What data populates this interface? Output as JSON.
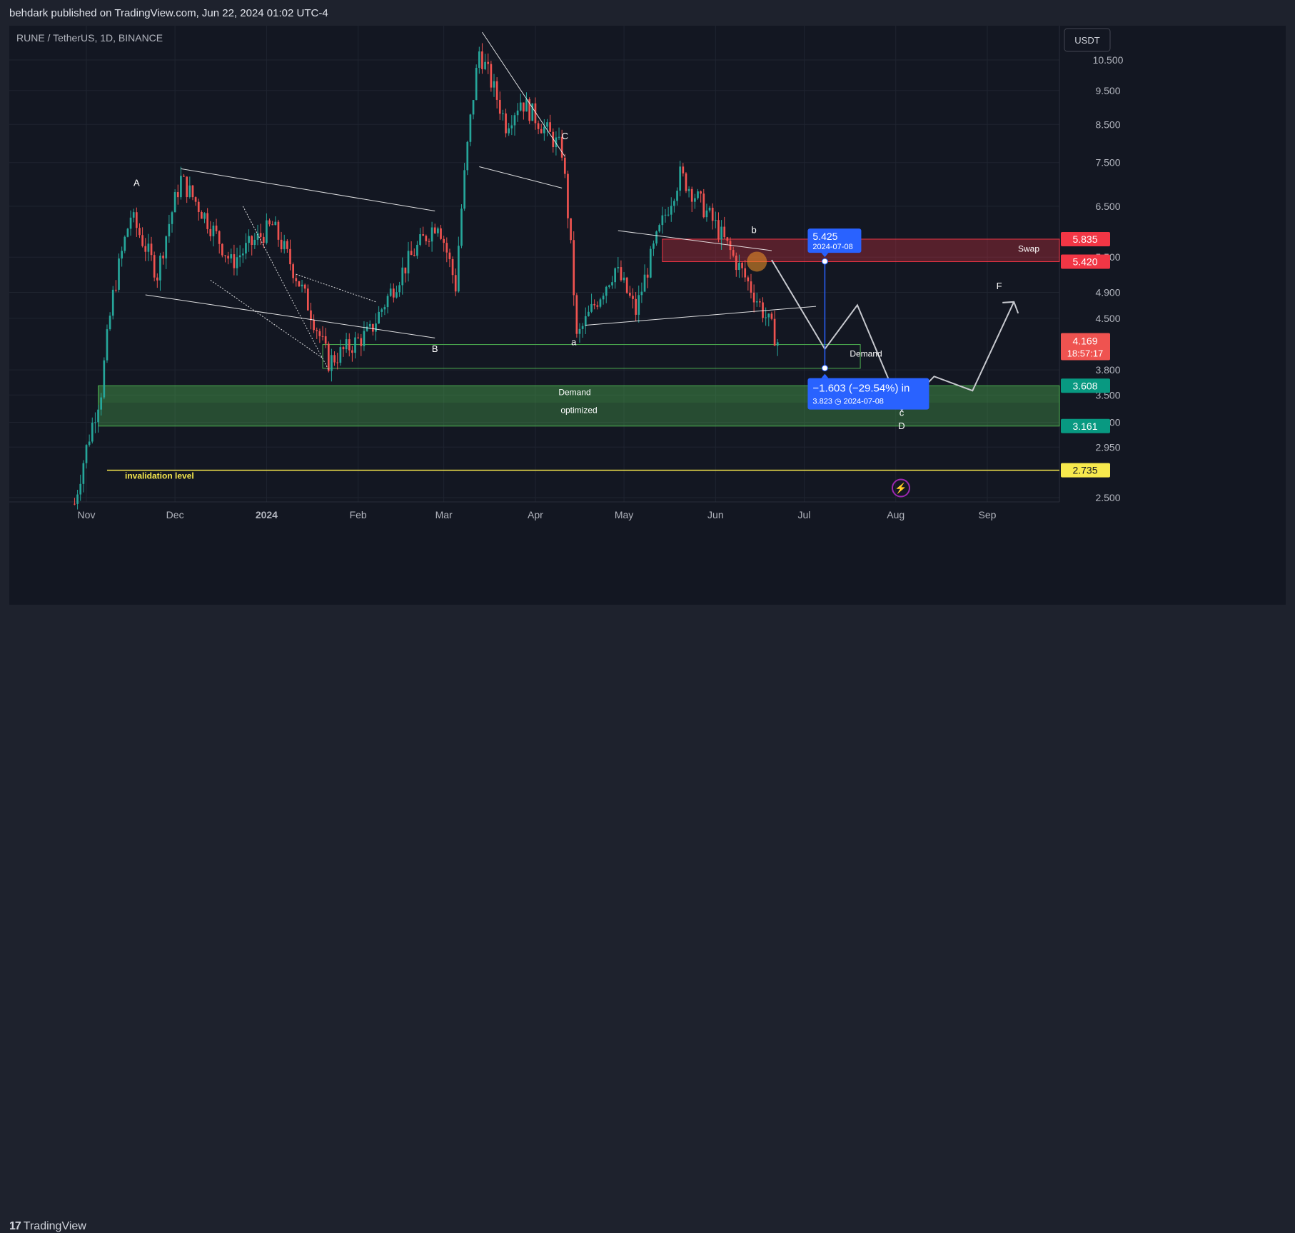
{
  "header": {
    "publisher": "behdark published on TradingView.com, Jun 22, 2024 01:02 UTC-4"
  },
  "footer": {
    "brand": "TradingView"
  },
  "chart_data": {
    "type": "candlestick",
    "symbol": "RUNE / TetherUS, 1D, BINANCE",
    "currency": "USDT",
    "y_scale": "log",
    "y_ticks": [
      "10.500",
      "9.500",
      "8.500",
      "7.500",
      "6.500",
      "5.500",
      "4.900",
      "4.500",
      "3.800",
      "3.500",
      "3.200",
      "2.950",
      "2.500"
    ],
    "x_ticks": [
      {
        "label": "Nov",
        "date": "2023-11-01"
      },
      {
        "label": "Dec",
        "date": "2023-12-01"
      },
      {
        "label": "2024",
        "date": "2024-01-01",
        "bold": true
      },
      {
        "label": "Feb",
        "date": "2024-02-01"
      },
      {
        "label": "Mar",
        "date": "2024-03-01"
      },
      {
        "label": "Apr",
        "date": "2024-04-01"
      },
      {
        "label": "May",
        "date": "2024-05-01"
      },
      {
        "label": "Jun",
        "date": "2024-06-01"
      },
      {
        "label": "Jul",
        "date": "2024-07-01"
      },
      {
        "label": "Aug",
        "date": "2024-08-01"
      },
      {
        "label": "Sep",
        "date": "2024-09-01"
      }
    ],
    "series": [
      {
        "name": "RUNE/USDT",
        "interval": "1D",
        "ohlc_approx_waypoints": [
          {
            "date": "2023-10-28",
            "close": 2.45
          },
          {
            "date": "2023-11-06",
            "close": 3.55
          },
          {
            "date": "2023-11-10",
            "close": 4.85
          },
          {
            "date": "2023-11-16",
            "close": 6.3
          },
          {
            "date": "2023-11-25",
            "close": 5.2
          },
          {
            "date": "2023-12-03",
            "close": 7.1
          },
          {
            "date": "2023-12-20",
            "close": 5.4
          },
          {
            "date": "2024-01-03",
            "close": 6.1
          },
          {
            "date": "2024-01-22",
            "close": 3.9
          },
          {
            "date": "2024-02-05",
            "close": 4.3
          },
          {
            "date": "2024-02-20",
            "close": 5.6
          },
          {
            "date": "2024-02-28",
            "close": 6.2
          },
          {
            "date": "2024-03-05",
            "close": 5.0
          },
          {
            "date": "2024-03-13",
            "close": 10.8
          },
          {
            "date": "2024-03-22",
            "close": 8.5
          },
          {
            "date": "2024-03-27",
            "close": 9.2
          },
          {
            "date": "2024-04-10",
            "close": 7.8
          },
          {
            "date": "2024-04-15",
            "close": 4.2
          },
          {
            "date": "2024-04-28",
            "close": 5.3
          },
          {
            "date": "2024-05-05",
            "close": 4.6
          },
          {
            "date": "2024-05-20",
            "close": 7.2
          },
          {
            "date": "2024-06-01",
            "close": 6.1
          },
          {
            "date": "2024-06-07",
            "close": 5.5
          },
          {
            "date": "2024-06-22",
            "close": 4.17
          }
        ]
      }
    ],
    "last_price": "4.169",
    "countdown": "18:57:17",
    "price_labels": [
      {
        "value": "5.835",
        "color": "#f23645"
      },
      {
        "value": "5.420",
        "color": "#f23645"
      },
      {
        "value": "3.608",
        "color": "#089981"
      },
      {
        "value": "3.161",
        "color": "#089981"
      },
      {
        "value": "2.735",
        "color": "#f7e94d"
      }
    ],
    "zones": [
      {
        "name": "swap-zone",
        "label": "Swap",
        "from": "2024-05-14",
        "to": "2024-09-30",
        "low": 5.42,
        "high": 5.835,
        "color": "#f23645"
      },
      {
        "name": "demand-zone-small",
        "label": "Demand",
        "from": "2024-01-20",
        "to": "2024-07-20",
        "low": 3.82,
        "high": 4.13,
        "color": "#4caf50"
      },
      {
        "name": "demand-zone-big",
        "label": "Demand",
        "label2": "optimized",
        "from": "2023-11-05",
        "to": "2024-09-30",
        "low": 3.161,
        "high": 3.608,
        "color": "#4caf50"
      }
    ],
    "invalidation": {
      "value": 2.735,
      "label": "invalidation level"
    },
    "wave_labels": [
      {
        "t": "A",
        "date": "2023-11-18",
        "price": 6.95
      },
      {
        "t": "B",
        "date": "2024-02-27",
        "price": 4.03
      },
      {
        "t": "C",
        "date": "2024-04-11",
        "price": 8.1
      },
      {
        "t": "a",
        "date": "2024-04-14",
        "price": 4.12
      },
      {
        "t": "b",
        "date": "2024-06-14",
        "price": 5.95
      },
      {
        "t": "c",
        "date": "2024-08-03",
        "price": 3.27
      },
      {
        "t": "D",
        "date": "2024-08-03",
        "price": 3.13
      },
      {
        "t": "F",
        "date": "2024-09-05",
        "price": 4.95
      }
    ],
    "measure": {
      "top_value": "5.425",
      "top_date": "2024-07-08",
      "bottom_text": "−1.603 (−29.54%) in",
      "bottom_value": "3.823",
      "bottom_date": "2024-07-08",
      "date": "2024-07-08",
      "from_price": 5.425,
      "to_price": 3.823
    },
    "projection": [
      {
        "date": "2024-06-20",
        "price": 5.45
      },
      {
        "date": "2024-07-08",
        "price": 4.07
      },
      {
        "date": "2024-07-19",
        "price": 4.7
      },
      {
        "date": "2024-08-03",
        "price": 3.33
      },
      {
        "date": "2024-08-14",
        "price": 3.72
      },
      {
        "date": "2024-08-27",
        "price": 3.55
      },
      {
        "date": "2024-09-10",
        "price": 4.75
      }
    ],
    "colors": {
      "up": "#26a69a",
      "down": "#ef5350",
      "background": "#131722",
      "grid": "#1f2430",
      "text": "#b2b5be"
    }
  }
}
